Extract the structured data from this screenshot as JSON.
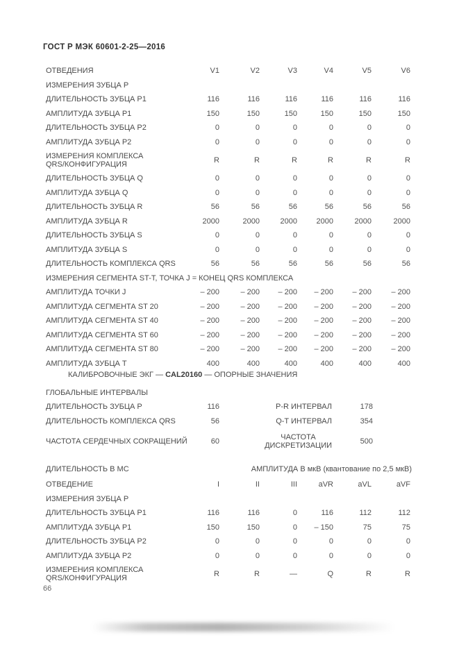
{
  "page": {
    "doc_title": "ГОСТ Р МЭК 60601-2-25—2016",
    "page_number": "66"
  },
  "v_leads_table": {
    "header_label": "ОТВЕДЕНИЯ",
    "columns": [
      "V1",
      "V2",
      "V3",
      "V4",
      "V5",
      "V6"
    ],
    "rows": [
      {
        "label": "ИЗМЕРЕНИЯ ЗУБЦА P",
        "values": null
      },
      {
        "label": "ДЛИТЕЛЬНОСТЬ ЗУБЦА P1",
        "values": [
          "116",
          "116",
          "116",
          "116",
          "116",
          "116"
        ]
      },
      {
        "label": "АМПЛИТУДА ЗУБЦА P1",
        "values": [
          "150",
          "150",
          "150",
          "150",
          "150",
          "150"
        ]
      },
      {
        "label": "ДЛИТЕЛЬНОСТЬ ЗУБЦА P2",
        "values": [
          "0",
          "0",
          "0",
          "0",
          "0",
          "0"
        ]
      },
      {
        "label": "АМПЛИТУДА ЗУБЦА P2",
        "values": [
          "0",
          "0",
          "0",
          "0",
          "0",
          "0"
        ]
      },
      {
        "label": "ИЗМЕРЕНИЯ КОМПЛЕКСА\nQRS/КОНФИГУРАЦИЯ",
        "values": [
          "R",
          "R",
          "R",
          "R",
          "R",
          "R"
        ],
        "tall": true
      },
      {
        "label": "ДЛИТЕЛЬНОСТЬ ЗУБЦА Q",
        "values": [
          "0",
          "0",
          "0",
          "0",
          "0",
          "0"
        ]
      },
      {
        "label": "АМПЛИТУДА ЗУБЦА Q",
        "values": [
          "0",
          "0",
          "0",
          "0",
          "0",
          "0"
        ]
      },
      {
        "label": "ДЛИТЕЛЬНОСТЬ ЗУБЦА R",
        "values": [
          "56",
          "56",
          "56",
          "56",
          "56",
          "56"
        ]
      },
      {
        "label": "АМПЛИТУДА ЗУБЦА R",
        "values": [
          "2000",
          "2000",
          "2000",
          "2000",
          "2000",
          "2000"
        ]
      },
      {
        "label": "ДЛИТЕЛЬНОСТЬ ЗУБЦА S",
        "values": [
          "0",
          "0",
          "0",
          "0",
          "0",
          "0"
        ]
      },
      {
        "label": "АМПЛИТУДА ЗУБЦА S",
        "values": [
          "0",
          "0",
          "0",
          "0",
          "0",
          "0"
        ]
      },
      {
        "label": "ДЛИТЕЛЬНОСТЬ КОМПЛЕКСА QRS",
        "values": [
          "56",
          "56",
          "56",
          "56",
          "56",
          "56"
        ]
      },
      {
        "label": "ИЗМЕРЕНИЯ СЕГМЕНТА ST-T, ТОЧКА J = КОНЕЦ QRS КОМПЛЕКСА",
        "values": null
      },
      {
        "label": "АМПЛИТУДА ТОЧКИ J",
        "values": [
          "– 200",
          "– 200",
          "– 200",
          "– 200",
          "– 200",
          "– 200"
        ]
      },
      {
        "label": "АМПЛИТУДА СЕГМЕНТА ST 20",
        "values": [
          "– 200",
          "– 200",
          "– 200",
          "– 200",
          "– 200",
          "– 200"
        ]
      },
      {
        "label": "АМПЛИТУДА СЕГМЕНТА ST 40",
        "values": [
          "– 200",
          "– 200",
          "– 200",
          "– 200",
          "– 200",
          "– 200"
        ]
      },
      {
        "label": "АМПЛИТУДА СЕГМЕНТА ST 60",
        "values": [
          "– 200",
          "– 200",
          "– 200",
          "– 200",
          "– 200",
          "– 200"
        ]
      },
      {
        "label": "АМПЛИТУДА СЕГМЕНТА ST 80",
        "values": [
          "– 200",
          "– 200",
          "– 200",
          "– 200",
          "– 200",
          "– 200"
        ]
      },
      {
        "label": "АМПЛИТУДА ЗУБЦА Т",
        "values": [
          "400",
          "400",
          "400",
          "400",
          "400",
          "400"
        ]
      }
    ]
  },
  "calibration": {
    "prefix": "КАЛИБРОВОЧНЫЕ ЭКГ — ",
    "code": "CAL20160",
    "suffix": " — ОПОРНЫЕ ЗНАЧЕНИЯ"
  },
  "globals": {
    "heading": "ГЛОБАЛЬНЫЕ ИНТЕРВАЛЫ",
    "rows": [
      {
        "l1": "ДЛИТЕЛЬНОСТЬ ЗУБЦА P",
        "v1": "116",
        "l2": "P-R ИНТЕРВАЛ",
        "v2": "178"
      },
      {
        "l1": "ДЛИТЕЛЬНОСТЬ КОМПЛЕКСА QRS",
        "v1": "56",
        "l2": "Q-T ИНТЕРВАЛ",
        "v2": "354"
      },
      {
        "l1": "ЧАСТОТА СЕРДЕЧНЫХ СОКРАЩЕНИЙ",
        "v1": "60",
        "l2": "ЧАСТОТА\nДИСКРЕТИЗАЦИИ",
        "v2": "500",
        "center2": true
      }
    ]
  },
  "units": {
    "duration_label": "ДЛИТЕЛЬНОСТЬ В МС",
    "amplitude_label": "АМПЛИТУДА В мкВ (квантование по 2,5 мкВ)"
  },
  "limb_leads_table": {
    "header_label": "ОТВЕДЕНИЕ",
    "columns": [
      "I",
      "II",
      "III",
      "aVR",
      "aVL",
      "aVF"
    ],
    "rows": [
      {
        "label": "ИЗМЕРЕНИЯ ЗУБЦА P",
        "values": null
      },
      {
        "label": "ДЛИТЕЛЬНОСТЬ ЗУБЦА P1",
        "values": [
          "116",
          "116",
          "0",
          "116",
          "112",
          "112"
        ]
      },
      {
        "label": "АМПЛИТУДА ЗУБЦА P1",
        "values": [
          "150",
          "150",
          "0",
          "– 150",
          "75",
          "75"
        ]
      },
      {
        "label": "ДЛИТЕЛЬНОСТЬ ЗУБЦА P2",
        "values": [
          "0",
          "0",
          "0",
          "0",
          "0",
          "0"
        ]
      },
      {
        "label": "АМПЛИТУДА ЗУБЦА P2",
        "values": [
          "0",
          "0",
          "0",
          "0",
          "0",
          "0"
        ]
      },
      {
        "label": "ИЗМЕРЕНИЯ КОМПЛЕКСА\nQRS/КОНФИГУРАЦИЯ",
        "values": [
          "R",
          "R",
          "—",
          "Q",
          "R",
          "R"
        ],
        "tall": true
      }
    ]
  }
}
